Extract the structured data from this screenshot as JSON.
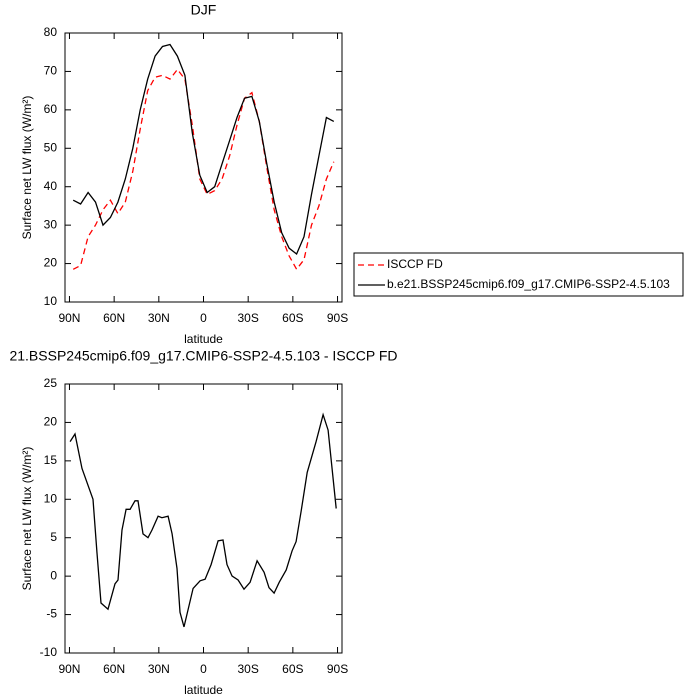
{
  "chart_data": [
    {
      "type": "line",
      "title": "DJF",
      "x_label": "latitude",
      "y_label": "Surface net LW flux (W/m²)",
      "x": [
        87.5,
        82.5,
        77.5,
        72.5,
        67.5,
        62.5,
        57.5,
        52.5,
        47.5,
        42.5,
        37.5,
        32.5,
        27.5,
        22.5,
        17.5,
        12.5,
        7.5,
        2.5,
        -2.5,
        -7.5,
        -12.5,
        -17.5,
        -22.5,
        -27.5,
        -32.5,
        -37.5,
        -42.5,
        -47.5,
        -52.5,
        -57.5,
        -62.5,
        -67.5,
        -72.5,
        -77.5,
        -82.5,
        -87.5
      ],
      "series": [
        {
          "name": "ISCCP FD",
          "color": "#ff0000",
          "dash": true,
          "values": [
            18.5,
            19.5,
            27,
            30,
            34,
            36.5,
            33,
            36,
            44,
            55,
            65,
            68.5,
            69,
            68,
            70.5,
            68,
            56,
            42,
            38,
            39,
            42,
            48,
            56,
            63,
            64.5,
            57,
            45,
            34,
            27,
            22,
            18.5,
            21,
            30,
            35,
            42,
            46.5
          ]
        },
        {
          "name": "b.e21.BSSP245cmip6.f09_g17.CMIP6-SSP2-4.5.103",
          "color": "#000000",
          "dash": false,
          "values": [
            36.5,
            35.5,
            38.5,
            36,
            30,
            32,
            36,
            42,
            50,
            60,
            68,
            74,
            76.5,
            77,
            74,
            69,
            54,
            43,
            38.5,
            40,
            46,
            52,
            58,
            63,
            63.5,
            57,
            46,
            36,
            28,
            24,
            22.5,
            27,
            38,
            48,
            58,
            57
          ]
        }
      ],
      "xlim": [
        93,
        -93
      ],
      "xticks": [
        {
          "value": 90,
          "label": "90N"
        },
        {
          "value": 60,
          "label": "60N"
        },
        {
          "value": 30,
          "label": "30N"
        },
        0,
        {
          "value": -30,
          "label": "30S"
        },
        {
          "value": -60,
          "label": "60S"
        },
        {
          "value": -90,
          "label": "90S"
        }
      ],
      "ylim": [
        10,
        80
      ],
      "yticks": [
        10,
        20,
        30,
        40,
        50,
        60,
        70,
        80
      ],
      "legend": "outside-right"
    },
    {
      "type": "line",
      "title": "21.BSSP245cmip6.f09_g17.CMIP6-SSP2-4.5.103 - ISCCP FD",
      "x_label": "latitude",
      "y_label": "Surface net LW flux (W/m²)",
      "x": [
        89.6,
        86.3,
        81.6,
        74.2,
        71.5,
        68.8,
        64.1,
        59.4,
        57.4,
        54.7,
        52.0,
        49.3,
        46.0,
        44.0,
        40.6,
        37.3,
        34.6,
        30.5,
        27.9,
        23.8,
        21.1,
        17.8,
        15.8,
        13.1,
        7.0,
        2.3,
        -1.1,
        -5.1,
        -9.8,
        -13.1,
        -15.8,
        -19.2,
        -23.2,
        -27.2,
        -31.3,
        -36.0,
        -40.7,
        -44.0,
        -47.4,
        -50.8,
        -55.5,
        -59.5,
        -62.2,
        -65.6,
        -69.6,
        -75.6,
        -80.3,
        -83.7,
        -89.1
      ],
      "series": [
        {
          "color": "#000000",
          "dash": false,
          "values": [
            17.5,
            18.5,
            14,
            10,
            3,
            -3.5,
            -4.3,
            -1,
            -0.5,
            6,
            8.7,
            8.7,
            9.8,
            9.8,
            5.5,
            5,
            6,
            7.8,
            7.6,
            7.8,
            5.5,
            1,
            -4.7,
            -6.6,
            -1.6,
            -0.6,
            -0.4,
            1.5,
            4.6,
            4.7,
            1.5,
            0,
            -0.5,
            -1.7,
            -0.8,
            2,
            0.5,
            -1.5,
            -2.2,
            -0.8,
            0.8,
            3.3,
            4.5,
            8.5,
            13.5,
            17.5,
            21,
            19,
            8.8
          ]
        }
      ],
      "xlim": [
        93,
        -93
      ],
      "xticks": [
        {
          "value": 90,
          "label": "90N"
        },
        {
          "value": 60,
          "label": "60N"
        },
        {
          "value": 30,
          "label": "30N"
        },
        0,
        {
          "value": -30,
          "label": "30S"
        },
        {
          "value": -60,
          "label": "60S"
        },
        {
          "value": -90,
          "label": "90S"
        }
      ],
      "ylim": [
        -10,
        25
      ],
      "yticks": [
        -10,
        -5,
        0,
        5,
        10,
        15,
        20,
        25
      ]
    }
  ]
}
